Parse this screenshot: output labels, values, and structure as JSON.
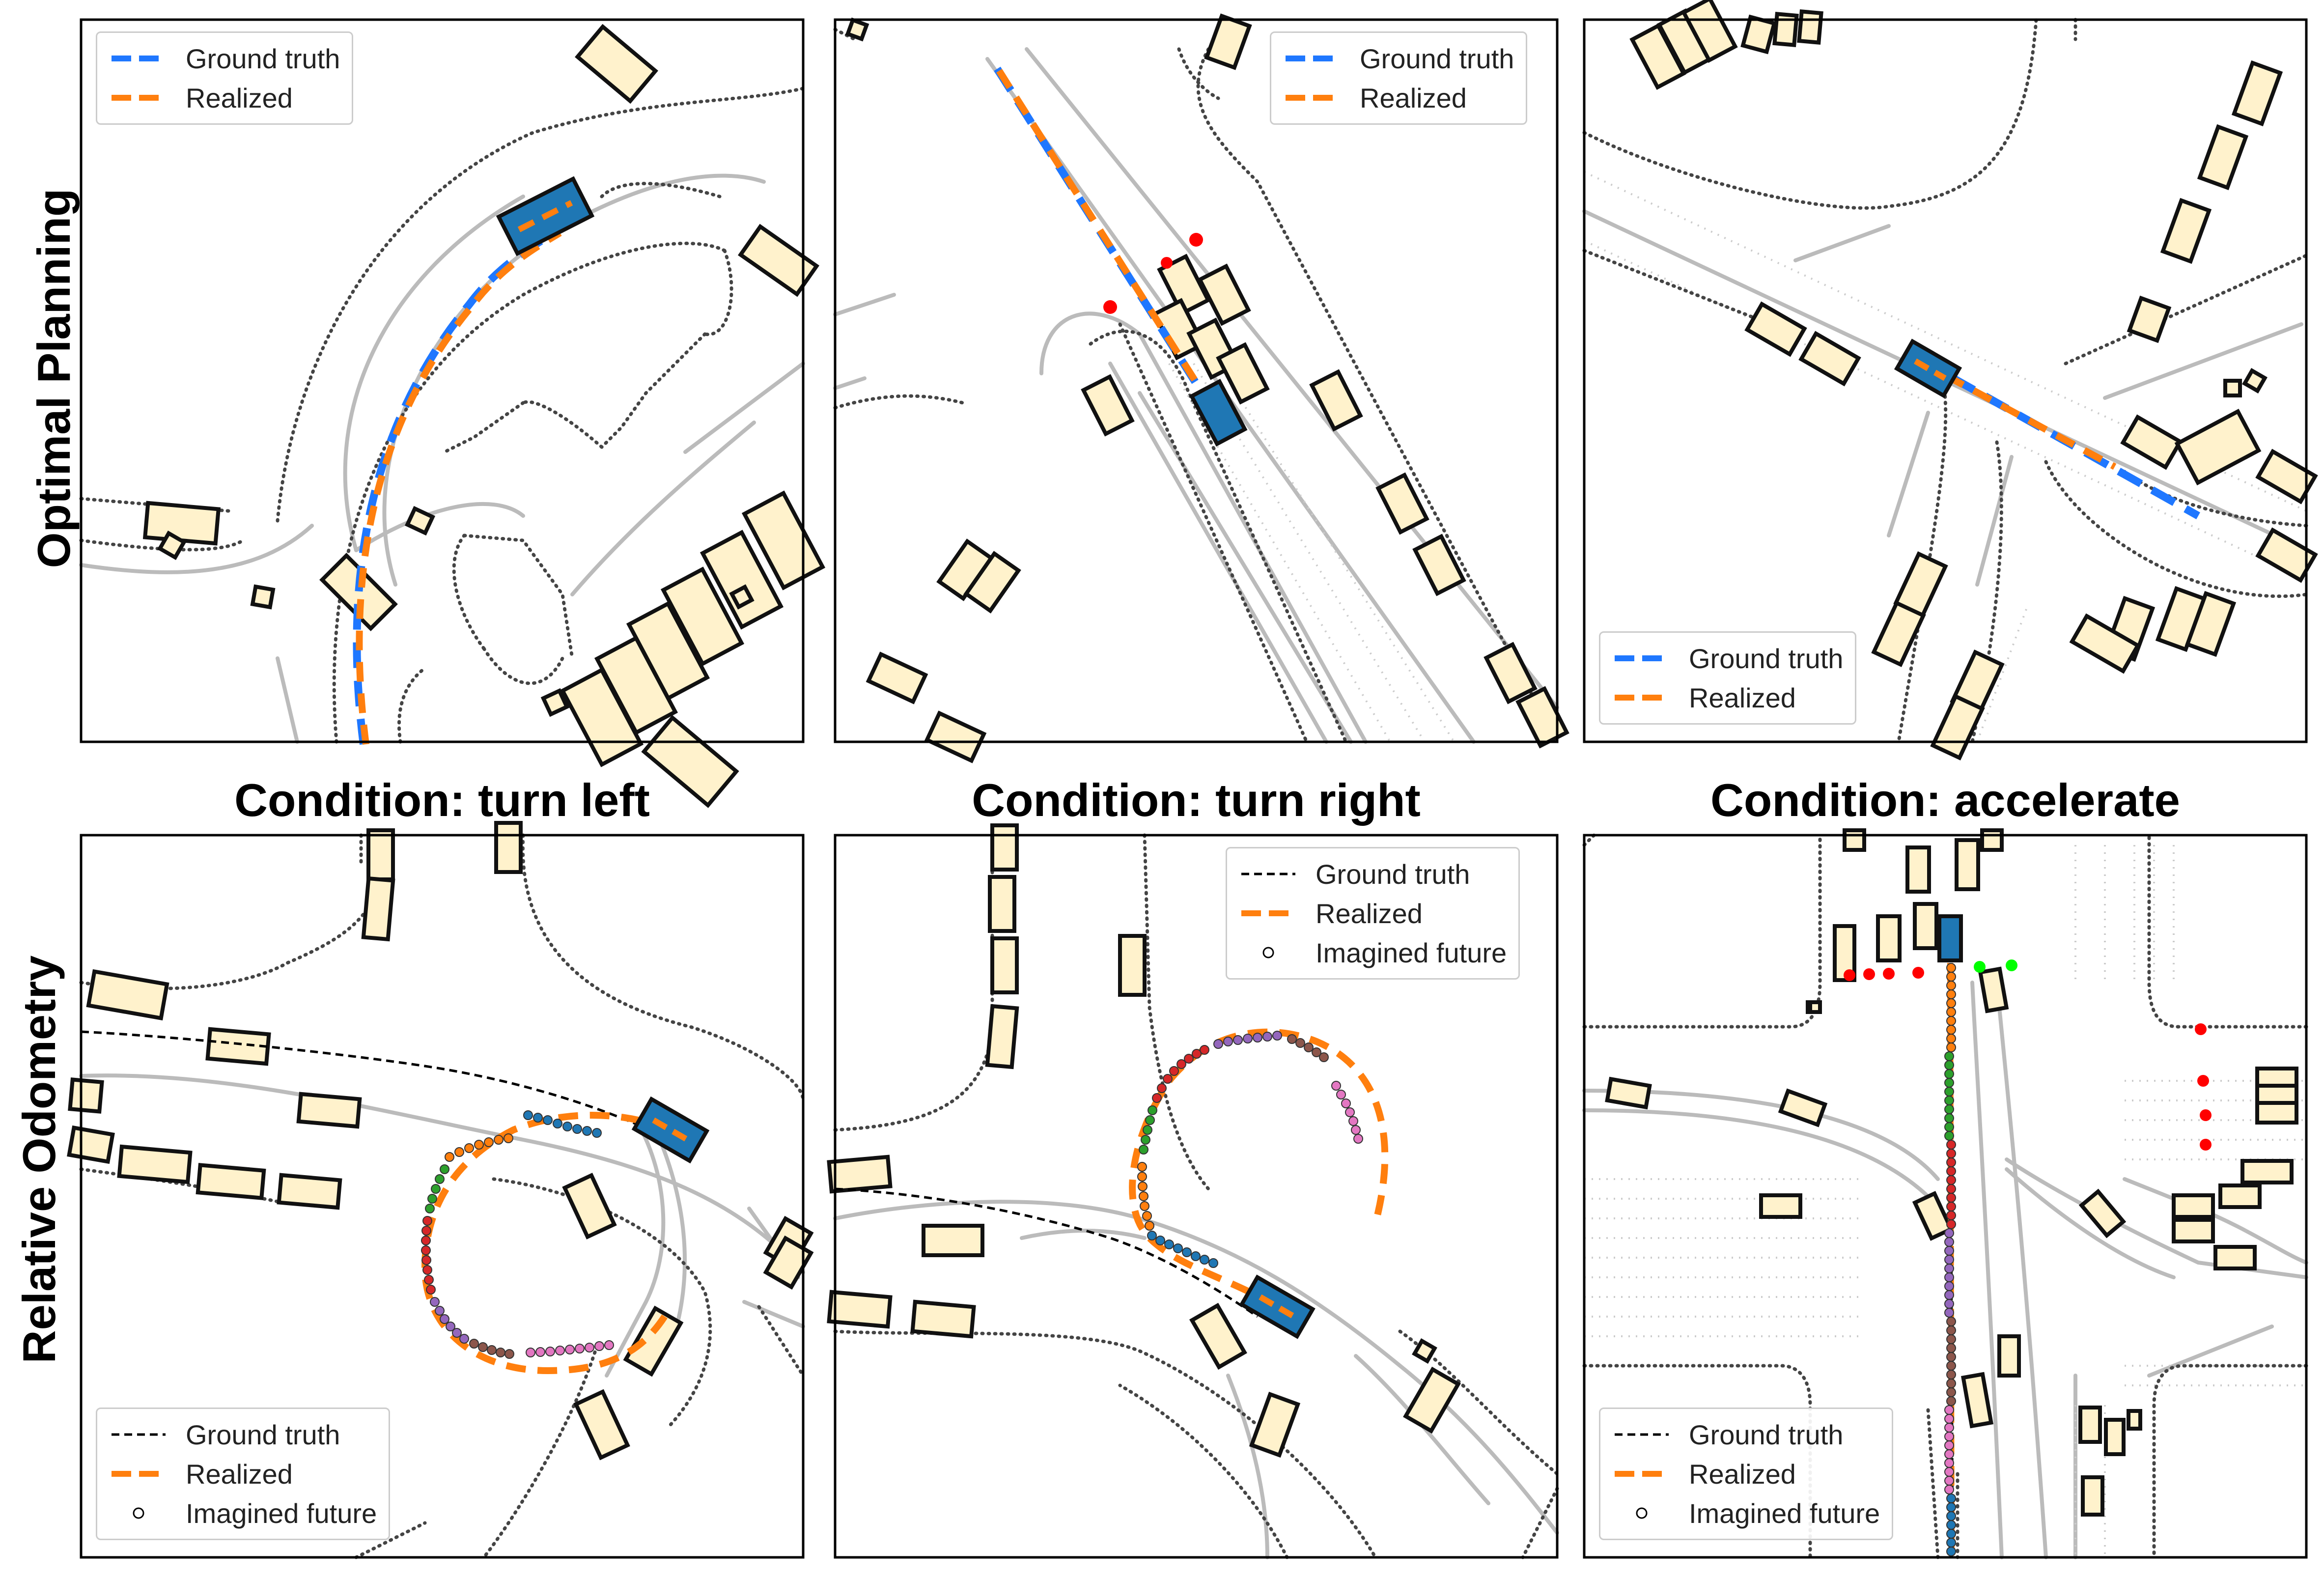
{
  "row_labels": {
    "top": "Optimal Planning",
    "bottom": "Relative Odometry"
  },
  "conditions": [
    "Condition: turn left",
    "Condition: turn right",
    "Condition: accelerate"
  ],
  "legend": {
    "ground_truth": "Ground truth",
    "realized": "Realized",
    "imagined": "Imagined future"
  },
  "colors": {
    "ground_truth_top": "#1f77ff",
    "ground_truth_bottom": "#000000",
    "realized": "#ff7f0e",
    "ego_vehicle": "#1f77b4",
    "agent_vehicle": "#fff2cc",
    "road_edge": "#444444",
    "lane": "#bbbbbb",
    "traffic_light_red": "#ff0000",
    "traffic_light_green": "#00ff00",
    "imagined_sequence": [
      "#ff7f0e",
      "#2ca02c",
      "#d62728",
      "#9467bd",
      "#8c564b",
      "#e377c2",
      "#1f77b4"
    ]
  }
}
